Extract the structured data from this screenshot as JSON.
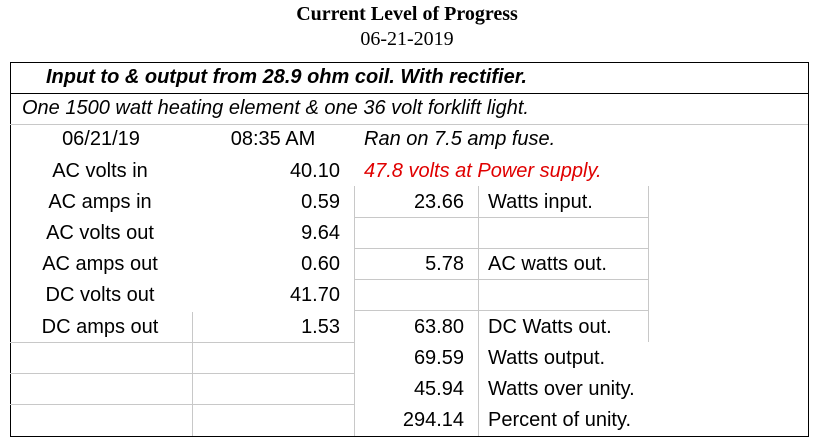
{
  "header": {
    "title": "Current Level of Progress",
    "date": "06-21-2019"
  },
  "table": {
    "rows": [
      [
        "Input to & output from 28.9 ohm coil. With rectifier.",
        null,
        null,
        null,
        null
      ],
      [
        "One 1500 watt heating element & one 36 volt forklift light.",
        null,
        null,
        null,
        null
      ],
      [
        "06/21/19",
        "08:35 AM",
        "Ran on  7.5 amp fuse.",
        null,
        null
      ],
      [
        "AC volts in",
        "40.10",
        "47.8 volts at Power supply.",
        null,
        null
      ],
      [
        "AC amps in",
        "0.59",
        "23.66",
        "Watts input.",
        null
      ],
      [
        "AC volts out",
        "9.64",
        null,
        null,
        null
      ],
      [
        "AC amps out",
        "0.60",
        "5.78",
        "AC watts out.",
        null
      ],
      [
        "DC volts out",
        "41.70",
        null,
        null,
        null
      ],
      [
        "DC amps out",
        "1.53",
        "63.80",
        "DC Watts out.",
        null
      ],
      [
        null,
        null,
        "69.59",
        "Watts output.",
        null
      ],
      [
        null,
        null,
        "45.94",
        "Watts over unity.",
        null
      ],
      [
        null,
        null,
        "294.14",
        "Percent of unity.",
        null
      ]
    ]
  }
}
